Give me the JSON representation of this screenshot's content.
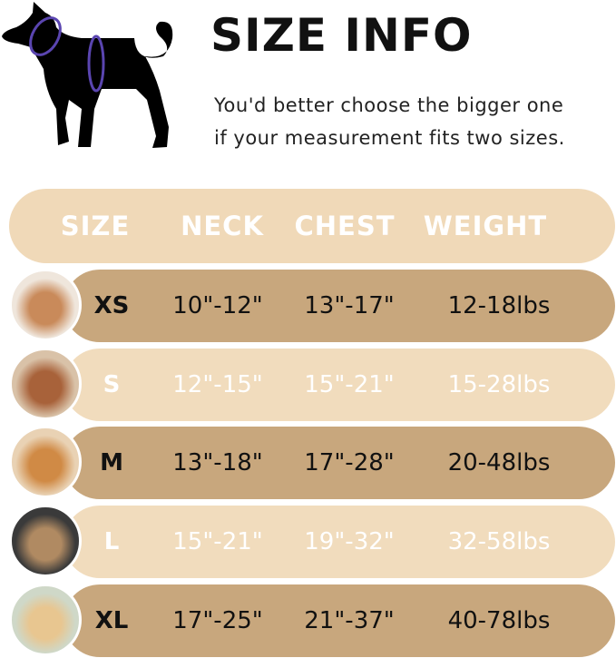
{
  "title": "SIZE INFO",
  "subtitle": [
    "You'd better choose the bigger one",
    "if your measurement fits two sizes."
  ],
  "colors": {
    "header": "#f0d9b8",
    "row_dark": "#c8a77d",
    "row_light": "#f1dcbd",
    "measure_ring": "#5a45b0"
  },
  "table": {
    "headers": [
      "SIZE",
      "NECK",
      "CHEST",
      "WEIGHT"
    ],
    "rows": [
      {
        "size": "XS",
        "neck": "10\"-12\"",
        "chest": "13\"-17\"",
        "weight": "12-18lbs",
        "photo": "pomeranian"
      },
      {
        "size": "S",
        "neck": "12\"-15\"",
        "chest": "15\"-21\"",
        "weight": "15-28lbs",
        "photo": "poodle"
      },
      {
        "size": "M",
        "neck": "13\"-18\"",
        "chest": "17\"-28\"",
        "weight": "20-48lbs",
        "photo": "shiba-inu"
      },
      {
        "size": "L",
        "neck": "15\"-21\"",
        "chest": "19\"-32\"",
        "weight": "32-58lbs",
        "photo": "french-bulldog"
      },
      {
        "size": "XL",
        "neck": "17\"-25\"",
        "chest": "21\"-37\"",
        "weight": "40-78lbs",
        "photo": "golden-retriever"
      }
    ]
  }
}
